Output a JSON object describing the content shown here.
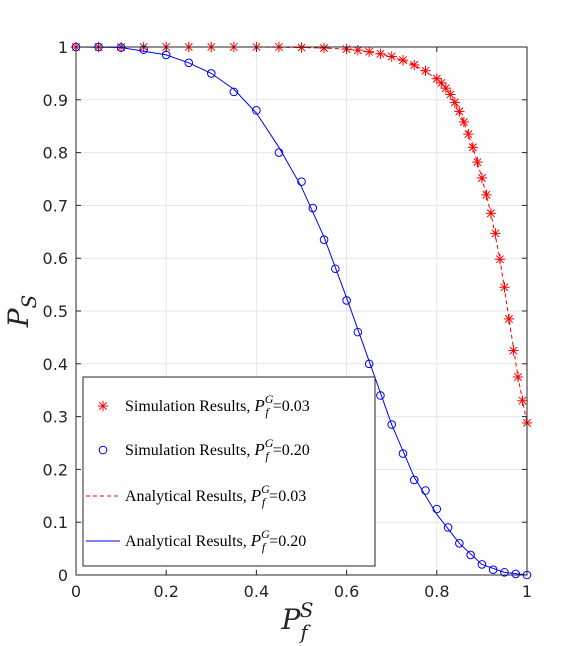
{
  "chart_data": {
    "type": "line",
    "xlabel": {
      "base": "P",
      "sub": "f",
      "sup": "S"
    },
    "ylabel": {
      "base": "P",
      "sub": "S"
    },
    "xlim": [
      0,
      1
    ],
    "ylim": [
      0,
      1
    ],
    "xticks": [
      "0",
      "0.2",
      "0.4",
      "0.6",
      "0.8",
      "1"
    ],
    "yticks": [
      "0",
      "0.1",
      "0.2",
      "0.3",
      "0.4",
      "0.5",
      "0.6",
      "0.7",
      "0.8",
      "0.9",
      "1"
    ],
    "grid": true,
    "legend_position": "bottom-left",
    "series": [
      {
        "name": "Simulation Results, P_f^G=0.03",
        "legend": {
          "prefix": "Simulation Results, ",
          "value": "=0.03"
        },
        "style": "marker-asterisk",
        "color": "#ff0000",
        "x": [
          0.0,
          0.05,
          0.1,
          0.15,
          0.2,
          0.25,
          0.3,
          0.35,
          0.4,
          0.45,
          0.5,
          0.55,
          0.6,
          0.625,
          0.65,
          0.675,
          0.7,
          0.725,
          0.75,
          0.775,
          0.8,
          0.81,
          0.82,
          0.83,
          0.84,
          0.85,
          0.86,
          0.87,
          0.88,
          0.89,
          0.9,
          0.91,
          0.92,
          0.93,
          0.94,
          0.95,
          0.96,
          0.97,
          0.98,
          0.99,
          1.0
        ],
        "y": [
          1.0,
          1.0,
          1.0,
          1.0,
          1.0,
          1.0,
          1.0,
          1.0,
          1.0,
          1.0,
          0.999,
          0.998,
          0.996,
          0.994,
          0.991,
          0.987,
          0.982,
          0.975,
          0.966,
          0.955,
          0.94,
          0.932,
          0.922,
          0.91,
          0.895,
          0.878,
          0.858,
          0.835,
          0.81,
          0.782,
          0.752,
          0.72,
          0.685,
          0.647,
          0.598,
          0.545,
          0.485,
          0.425,
          0.375,
          0.33,
          0.288
        ]
      },
      {
        "name": "Simulation Results, P_f^G=0.20",
        "legend": {
          "prefix": "Simulation Results, ",
          "value": "=0.20"
        },
        "style": "marker-circle",
        "color": "#0000ff",
        "x": [
          0.0,
          0.05,
          0.1,
          0.15,
          0.2,
          0.25,
          0.3,
          0.35,
          0.4,
          0.45,
          0.5,
          0.525,
          0.55,
          0.575,
          0.6,
          0.625,
          0.65,
          0.675,
          0.7,
          0.725,
          0.75,
          0.775,
          0.8,
          0.825,
          0.85,
          0.875,
          0.9,
          0.925,
          0.95,
          0.975,
          1.0
        ],
        "y": [
          1.0,
          1.0,
          0.999,
          0.995,
          0.985,
          0.97,
          0.95,
          0.915,
          0.88,
          0.8,
          0.745,
          0.695,
          0.635,
          0.58,
          0.52,
          0.46,
          0.4,
          0.34,
          0.285,
          0.23,
          0.18,
          0.16,
          0.125,
          0.09,
          0.06,
          0.038,
          0.02,
          0.01,
          0.005,
          0.002,
          0.0
        ]
      },
      {
        "name": "Analytical Results, P_f^G=0.03",
        "legend": {
          "prefix": "Analytical Results, ",
          "value": "=0.03"
        },
        "style": "dashed",
        "color": "#ff0000",
        "x": [
          0.0,
          0.1,
          0.2,
          0.3,
          0.4,
          0.5,
          0.55,
          0.6,
          0.65,
          0.7,
          0.75,
          0.8,
          0.82,
          0.84,
          0.86,
          0.88,
          0.9,
          0.92,
          0.94,
          0.96,
          0.98,
          1.0
        ],
        "y": [
          1.0,
          1.0,
          1.0,
          1.0,
          1.0,
          0.999,
          0.998,
          0.996,
          0.991,
          0.982,
          0.966,
          0.94,
          0.922,
          0.895,
          0.858,
          0.81,
          0.752,
          0.685,
          0.598,
          0.485,
          0.375,
          0.288
        ]
      },
      {
        "name": "Analytical Results, P_f^G=0.20",
        "legend": {
          "prefix": "Analytical Results, ",
          "value": "=0.20"
        },
        "style": "solid",
        "color": "#0000ff",
        "x": [
          0.0,
          0.1,
          0.2,
          0.25,
          0.3,
          0.35,
          0.4,
          0.45,
          0.5,
          0.55,
          0.6,
          0.65,
          0.7,
          0.75,
          0.8,
          0.85,
          0.9,
          0.95,
          1.0
        ],
        "y": [
          1.0,
          0.999,
          0.985,
          0.97,
          0.95,
          0.92,
          0.875,
          0.81,
          0.735,
          0.64,
          0.525,
          0.405,
          0.285,
          0.185,
          0.115,
          0.06,
          0.02,
          0.005,
          0.0
        ]
      }
    ]
  }
}
